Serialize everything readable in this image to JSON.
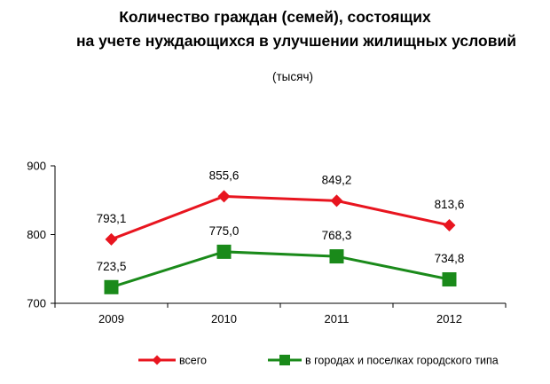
{
  "chart_data": {
    "type": "line",
    "title_lines": [
      "Количество граждан (семей), состоящих",
      "на учете нуждающихся в улучшении жилищных условий"
    ],
    "subtitle": "(тысяч)",
    "categories": [
      "2009",
      "2010",
      "2011",
      "2012"
    ],
    "y_ticks": [
      "700",
      "800",
      "900"
    ],
    "ylim": [
      700,
      900
    ],
    "grid": false,
    "legend_position": "bottom",
    "series": [
      {
        "name": "всего",
        "values": [
          793.1,
          855.6,
          849.2,
          813.6
        ],
        "labels": [
          "793,1",
          "855,6",
          "849,2",
          "813,6"
        ],
        "color": "#e8151f",
        "marker": "diamond"
      },
      {
        "name": "в городах и поселках городского типа",
        "values": [
          723.5,
          775.0,
          768.3,
          734.8
        ],
        "labels": [
          "723,5",
          "775,0",
          "768,3",
          "734,8"
        ],
        "color": "#1a8a1a",
        "marker": "square"
      }
    ]
  }
}
